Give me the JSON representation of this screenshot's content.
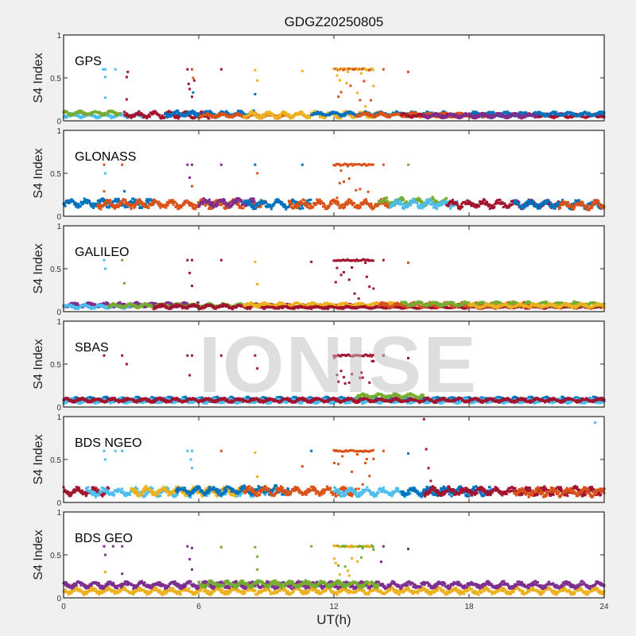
{
  "chart_data": {
    "type": "scatter",
    "title": "GDGZ20250805",
    "xlabel": "UT(h)",
    "ylabel": "S4 Index",
    "xlim": [
      0,
      24
    ],
    "ylim": [
      0,
      1
    ],
    "xticks": [
      "0",
      "6",
      "12",
      "18",
      "24"
    ],
    "yticks": [
      "0",
      "0.5",
      "1"
    ],
    "watermark": "IONISE",
    "colors": {
      "blue": "#0072BD",
      "orange": "#D95319",
      "yellow": "#EDB120",
      "purple": "#7E2F8E",
      "green": "#77AC30",
      "cyan": "#4DBEEE",
      "red": "#A2142F"
    },
    "panels": [
      {
        "name": "GPS",
        "series": [
          {
            "color": "#4DBEEE",
            "t": [
              0,
              3.5
            ],
            "level": 0.06,
            "amp": 0.02
          },
          {
            "color": "#77AC30",
            "t": [
              0,
              2.5
            ],
            "level": 0.09,
            "amp": 0.02
          },
          {
            "color": "#A2142F",
            "t": [
              2.7,
              6.5
            ],
            "level": 0.07,
            "amp": 0.03
          },
          {
            "color": "#0072BD",
            "t": [
              4.5,
              8.5
            ],
            "level": 0.08,
            "amp": 0.03
          },
          {
            "color": "#D95319",
            "t": [
              6,
              10
            ],
            "level": 0.06,
            "amp": 0.02
          },
          {
            "color": "#EDB120",
            "t": [
              8,
              14
            ],
            "level": 0.07,
            "amp": 0.03
          },
          {
            "color": "#0072BD",
            "t": [
              11,
              17
            ],
            "level": 0.08,
            "amp": 0.02
          },
          {
            "color": "#D95319",
            "t": [
              13,
              19
            ],
            "level": 0.07,
            "amp": 0.02
          },
          {
            "color": "#A2142F",
            "t": [
              15,
              24
            ],
            "level": 0.06,
            "amp": 0.02
          },
          {
            "color": "#0072BD",
            "t": [
              18,
              24
            ],
            "level": 0.08,
            "amp": 0.02
          },
          {
            "color": "#7E2F8E",
            "t": [
              16,
              21
            ],
            "level": 0.06,
            "amp": 0.02
          }
        ],
        "cluster": {
          "t": [
            12,
            13.8
          ],
          "level": 0.6,
          "colors": [
            "#EDB120",
            "#D95319"
          ]
        },
        "spikes": [
          [
            1.75,
            0.6,
            "#4DBEEE"
          ],
          [
            1.85,
            0.6,
            "#4DBEEE"
          ],
          [
            1.85,
            0.51,
            "#4DBEEE"
          ],
          [
            1.85,
            0.27,
            "#4DBEEE"
          ],
          [
            2.3,
            0.6,
            "#4DBEEE"
          ],
          [
            2.85,
            0.57,
            "#A2142F"
          ],
          [
            2.8,
            0.51,
            "#A2142F"
          ],
          [
            2.8,
            0.25,
            "#A2142F"
          ],
          [
            5.5,
            0.6,
            "#A2142F"
          ],
          [
            5.7,
            0.6,
            "#D95319"
          ],
          [
            5.55,
            0.43,
            "#A2142F"
          ],
          [
            5.6,
            0.37,
            "#A2142F"
          ],
          [
            5.75,
            0.5,
            "#D95319"
          ],
          [
            5.8,
            0.47,
            "#A2142F"
          ],
          [
            5.75,
            0.33,
            "#0072BD"
          ],
          [
            5.7,
            0.28,
            "#A2142F"
          ],
          [
            7,
            0.6,
            "#A2142F"
          ],
          [
            8.5,
            0.59,
            "#EDB120"
          ],
          [
            8.6,
            0.47,
            "#EDB120"
          ],
          [
            8.5,
            0.31,
            "#0072BD"
          ],
          [
            10.6,
            0.58,
            "#EDB120"
          ],
          [
            14.2,
            0.6,
            "#D95319"
          ],
          [
            15.3,
            0.57,
            "#D95319"
          ]
        ]
      },
      {
        "name": "GLONASS",
        "series": [
          {
            "color": "#0072BD",
            "t": [
              0,
              4
            ],
            "level": 0.15,
            "amp": 0.04
          },
          {
            "color": "#D95319",
            "t": [
              1.5,
              9
            ],
            "level": 0.14,
            "amp": 0.04
          },
          {
            "color": "#7E2F8E",
            "t": [
              6,
              8.5
            ],
            "level": 0.16,
            "amp": 0.04
          },
          {
            "color": "#0072BD",
            "t": [
              8,
              11
            ],
            "level": 0.14,
            "amp": 0.04
          },
          {
            "color": "#D95319",
            "t": [
              10,
              14.5
            ],
            "level": 0.14,
            "amp": 0.04
          },
          {
            "color": "#77AC30",
            "t": [
              14,
              17
            ],
            "level": 0.17,
            "amp": 0.04
          },
          {
            "color": "#4DBEEE",
            "t": [
              14.5,
              17.5
            ],
            "level": 0.14,
            "amp": 0.04
          },
          {
            "color": "#A2142F",
            "t": [
              17,
              22
            ],
            "level": 0.14,
            "amp": 0.04
          },
          {
            "color": "#0072BD",
            "t": [
              20,
              24
            ],
            "level": 0.14,
            "amp": 0.04
          },
          {
            "color": "#D95319",
            "t": [
              22,
              24
            ],
            "level": 0.13,
            "amp": 0.04
          }
        ],
        "cluster": {
          "t": [
            12,
            13.8
          ],
          "level": 0.6,
          "colors": [
            "#D95319"
          ]
        },
        "spikes": [
          [
            1.8,
            0.6,
            "#D95319"
          ],
          [
            1.85,
            0.5,
            "#4DBEEE"
          ],
          [
            1.8,
            0.29,
            "#D95319"
          ],
          [
            2.6,
            0.6,
            "#D95319"
          ],
          [
            2.7,
            0.29,
            "#0072BD"
          ],
          [
            5.5,
            0.6,
            "#7E2F8E"
          ],
          [
            5.7,
            0.6,
            "#7E2F8E"
          ],
          [
            5.6,
            0.45,
            "#7E2F8E"
          ],
          [
            5.7,
            0.35,
            "#D95319"
          ],
          [
            7,
            0.6,
            "#7E2F8E"
          ],
          [
            8.5,
            0.6,
            "#0072BD"
          ],
          [
            8.6,
            0.5,
            "#D95319"
          ],
          [
            10.6,
            0.6,
            "#0072BD"
          ],
          [
            14.2,
            0.6,
            "#D95319"
          ],
          [
            15.3,
            0.6,
            "#77AC30"
          ]
        ]
      },
      {
        "name": "GALILEO",
        "series": [
          {
            "color": "#7E2F8E",
            "t": [
              0,
              6
            ],
            "level": 0.08,
            "amp": 0.02
          },
          {
            "color": "#4DBEEE",
            "t": [
              0,
              3
            ],
            "level": 0.06,
            "amp": 0.02
          },
          {
            "color": "#77AC30",
            "t": [
              2,
              9
            ],
            "level": 0.07,
            "amp": 0.02
          },
          {
            "color": "#A2142F",
            "t": [
              4,
              13
            ],
            "level": 0.06,
            "amp": 0.02
          },
          {
            "color": "#EDB120",
            "t": [
              8,
              15
            ],
            "level": 0.08,
            "amp": 0.02
          },
          {
            "color": "#A2142F",
            "t": [
              9,
              24
            ],
            "level": 0.05,
            "amp": 0.01
          },
          {
            "color": "#D95319",
            "t": [
              14,
              21
            ],
            "level": 0.08,
            "amp": 0.02
          },
          {
            "color": "#77AC30",
            "t": [
              15,
              24
            ],
            "level": 0.09,
            "amp": 0.02
          },
          {
            "color": "#EDB120",
            "t": [
              18,
              24
            ],
            "level": 0.07,
            "amp": 0.02
          }
        ],
        "cluster": {
          "t": [
            12,
            13.8
          ],
          "level": 0.6,
          "colors": [
            "#A2142F"
          ]
        },
        "spikes": [
          [
            1.8,
            0.6,
            "#4DBEEE"
          ],
          [
            1.85,
            0.5,
            "#4DBEEE"
          ],
          [
            2.6,
            0.6,
            "#77AC30"
          ],
          [
            2.7,
            0.33,
            "#77AC30"
          ],
          [
            5.5,
            0.6,
            "#A2142F"
          ],
          [
            5.7,
            0.6,
            "#A2142F"
          ],
          [
            5.6,
            0.45,
            "#A2142F"
          ],
          [
            5.7,
            0.3,
            "#A2142F"
          ],
          [
            7,
            0.6,
            "#A2142F"
          ],
          [
            8.5,
            0.58,
            "#EDB120"
          ],
          [
            8.6,
            0.32,
            "#EDB120"
          ],
          [
            11,
            0.58,
            "#A2142F"
          ],
          [
            14.2,
            0.6,
            "#A2142F"
          ],
          [
            15.3,
            0.57,
            "#D95319"
          ]
        ]
      },
      {
        "name": "SBAS",
        "series": [
          {
            "color": "#0072BD",
            "t": [
              0,
              24
            ],
            "level": 0.09,
            "amp": 0.02
          },
          {
            "color": "#4DBEEE",
            "t": [
              0,
              24
            ],
            "level": 0.07,
            "amp": 0.02
          },
          {
            "color": "#A2142F",
            "t": [
              0,
              24
            ],
            "level": 0.08,
            "amp": 0.02
          },
          {
            "color": "#77AC30",
            "t": [
              13,
              16
            ],
            "level": 0.13,
            "amp": 0.02
          }
        ],
        "cluster": {
          "t": [
            12,
            13.8
          ],
          "level": 0.6,
          "colors": [
            "#A2142F"
          ]
        },
        "spikes": [
          [
            1.8,
            0.6,
            "#A2142F"
          ],
          [
            2.6,
            0.6,
            "#A2142F"
          ],
          [
            2.8,
            0.5,
            "#A2142F"
          ],
          [
            5.5,
            0.6,
            "#A2142F"
          ],
          [
            5.7,
            0.6,
            "#A2142F"
          ],
          [
            5.6,
            0.37,
            "#A2142F"
          ],
          [
            7,
            0.6,
            "#A2142F"
          ],
          [
            8.5,
            0.6,
            "#A2142F"
          ],
          [
            8.6,
            0.45,
            "#A2142F"
          ],
          [
            14.2,
            0.6,
            "#A2142F"
          ],
          [
            15.3,
            0.57,
            "#A2142F"
          ]
        ]
      },
      {
        "name": "BDS NGEO",
        "series": [
          {
            "color": "#A2142F",
            "t": [
              0,
              2
            ],
            "level": 0.13,
            "amp": 0.04
          },
          {
            "color": "#4DBEEE",
            "t": [
              1,
              9
            ],
            "level": 0.12,
            "amp": 0.04
          },
          {
            "color": "#EDB120",
            "t": [
              3,
              8
            ],
            "level": 0.13,
            "amp": 0.04
          },
          {
            "color": "#0072BD",
            "t": [
              5,
              10
            ],
            "level": 0.14,
            "amp": 0.04
          },
          {
            "color": "#D95319",
            "t": [
              8,
              13
            ],
            "level": 0.13,
            "amp": 0.04
          },
          {
            "color": "#4DBEEE",
            "t": [
              12,
              16
            ],
            "level": 0.12,
            "amp": 0.04
          },
          {
            "color": "#0072BD",
            "t": [
              15,
              19
            ],
            "level": 0.13,
            "amp": 0.04
          },
          {
            "color": "#A2142F",
            "t": [
              16,
              24
            ],
            "level": 0.13,
            "amp": 0.04
          },
          {
            "color": "#D95319",
            "t": [
              20,
              24
            ],
            "level": 0.12,
            "amp": 0.04
          }
        ],
        "cluster": {
          "t": [
            12,
            13.8
          ],
          "level": 0.6,
          "colors": [
            "#D95319"
          ]
        },
        "spikes": [
          [
            1.8,
            0.6,
            "#4DBEEE"
          ],
          [
            1.85,
            0.5,
            "#4DBEEE"
          ],
          [
            2.3,
            0.6,
            "#4DBEEE"
          ],
          [
            2.6,
            0.6,
            "#4DBEEE"
          ],
          [
            5.5,
            0.6,
            "#4DBEEE"
          ],
          [
            5.7,
            0.6,
            "#4DBEEE"
          ],
          [
            5.65,
            0.5,
            "#4DBEEE"
          ],
          [
            5.7,
            0.4,
            "#4DBEEE"
          ],
          [
            7,
            0.6,
            "#D95319"
          ],
          [
            8.5,
            0.58,
            "#EDB120"
          ],
          [
            8.6,
            0.3,
            "#EDB120"
          ],
          [
            10.6,
            0.42,
            "#D95319"
          ],
          [
            11,
            0.6,
            "#0072BD"
          ],
          [
            14.2,
            0.6,
            "#D95319"
          ],
          [
            15.3,
            0.57,
            "#0072BD"
          ],
          [
            16,
            0.97,
            "#A2142F"
          ],
          [
            16.1,
            0.62,
            "#A2142F"
          ],
          [
            16.2,
            0.4,
            "#A2142F"
          ],
          [
            16.3,
            0.25,
            "#A2142F"
          ],
          [
            23.6,
            0.93,
            "#4DBEEE"
          ]
        ]
      },
      {
        "name": "BDS GEO",
        "series": [
          {
            "color": "#EDB120",
            "t": [
              0,
              24
            ],
            "level": 0.08,
            "amp": 0.03
          },
          {
            "color": "#7E2F8E",
            "t": [
              0,
              24
            ],
            "level": 0.15,
            "amp": 0.03
          },
          {
            "color": "#77AC30",
            "t": [
              6,
              14
            ],
            "level": 0.16,
            "amp": 0.03
          }
        ],
        "cluster": {
          "t": [
            12,
            13.8
          ],
          "level": 0.6,
          "colors": [
            "#77AC30",
            "#EDB120"
          ]
        },
        "spikes": [
          [
            1.8,
            0.6,
            "#7E2F8E"
          ],
          [
            1.85,
            0.5,
            "#7E2F8E"
          ],
          [
            1.85,
            0.3,
            "#EDB120"
          ],
          [
            2.2,
            0.6,
            "#7E2F8E"
          ],
          [
            2.6,
            0.6,
            "#7E2F8E"
          ],
          [
            2.6,
            0.28,
            "#7E2F8E"
          ],
          [
            5.5,
            0.6,
            "#7E2F8E"
          ],
          [
            5.7,
            0.58,
            "#7E2F8E"
          ],
          [
            5.6,
            0.45,
            "#7E2F8E"
          ],
          [
            5.7,
            0.33,
            "#7E2F8E"
          ],
          [
            7,
            0.59,
            "#77AC30"
          ],
          [
            8.5,
            0.59,
            "#77AC30"
          ],
          [
            8.6,
            0.48,
            "#77AC30"
          ],
          [
            8.6,
            0.33,
            "#77AC30"
          ],
          [
            11,
            0.6,
            "#77AC30"
          ],
          [
            14.2,
            0.6,
            "#7E2F8E"
          ],
          [
            14.1,
            0.42,
            "#7E2F8E"
          ],
          [
            15.3,
            0.57,
            "#7E2F8E"
          ]
        ]
      }
    ]
  }
}
